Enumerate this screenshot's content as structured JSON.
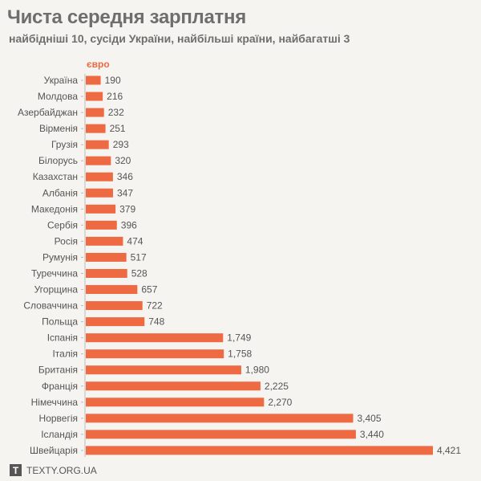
{
  "chart_data": {
    "type": "bar",
    "orientation": "horizontal",
    "title": "Чиста середня зарплатня",
    "subtitle": "найбідніші 10, сусіди України, найбільші країни, найбагатші 3",
    "unit_label": "євро",
    "categories": [
      "Україна",
      "Молдова",
      "Азербайджан",
      "Вірменія",
      "Грузія",
      "Білорусь",
      "Казахстан",
      "Албанія",
      "Македонія",
      "Сербія",
      "Росія",
      "Румунія",
      "Туреччина",
      "Угорщина",
      "Словаччина",
      "Польща",
      "Іспанія",
      "Італія",
      "Британія",
      "Франція",
      "Німеччина",
      "Норвегія",
      "Ісландія",
      "Швейцарія"
    ],
    "values": [
      190,
      216,
      232,
      251,
      293,
      320,
      346,
      347,
      379,
      396,
      474,
      517,
      528,
      657,
      722,
      748,
      1749,
      1758,
      1980,
      2225,
      2270,
      3405,
      3440,
      4421
    ],
    "value_labels": [
      "190",
      "216",
      "232",
      "251",
      "293",
      "320",
      "346",
      "347",
      "379",
      "396",
      "474",
      "517",
      "528",
      "657",
      "722",
      "748",
      "1,749",
      "1,758",
      "1,980",
      "2,225",
      "2,270",
      "3,405",
      "3,440",
      "4,421"
    ],
    "xlim": [
      0,
      4421
    ],
    "grid": false,
    "bar_color": "#ee6a43"
  },
  "footer": {
    "logo": "T",
    "site": "TEXTY.ORG.UA"
  }
}
